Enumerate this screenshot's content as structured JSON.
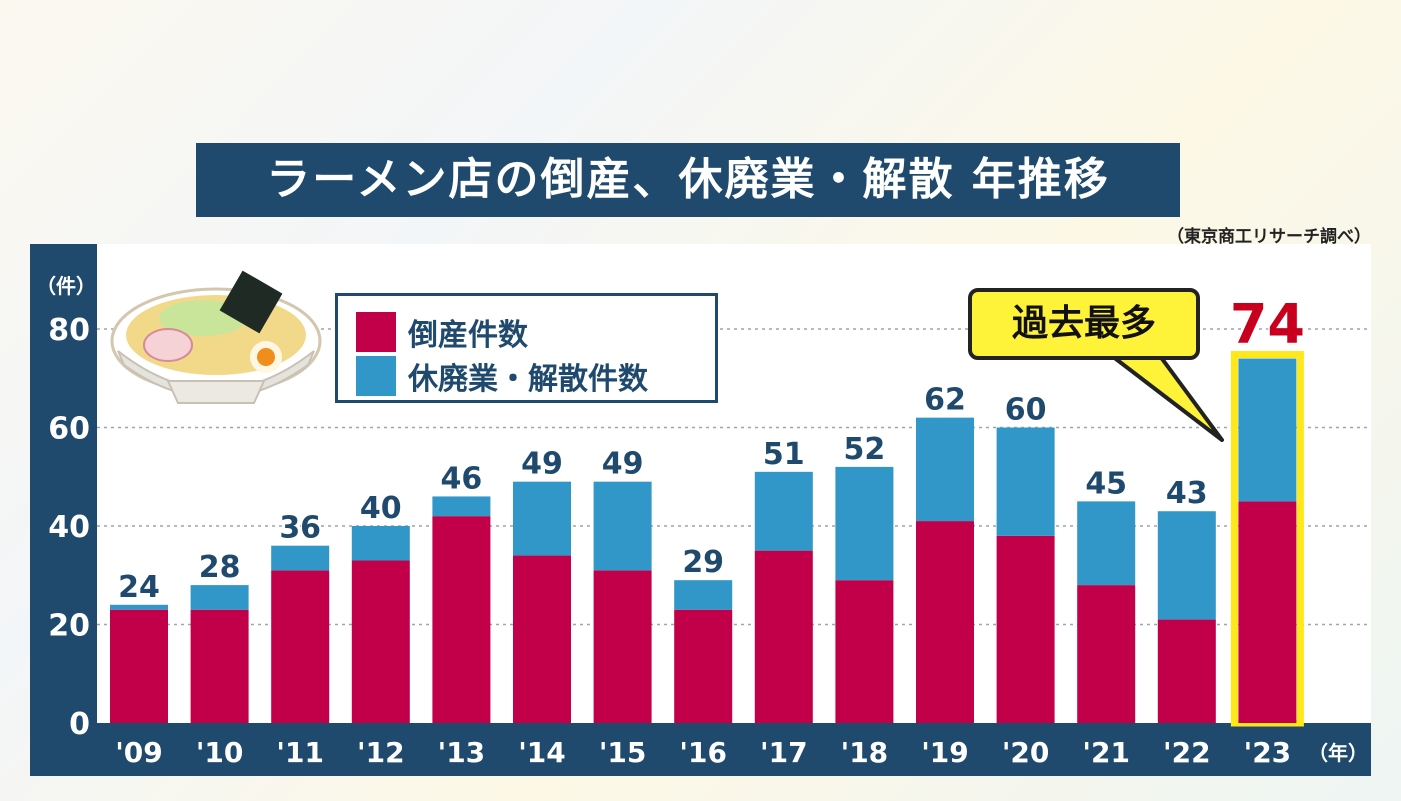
{
  "title": "ラーメン店の倒産、休廃業・解散 年推移",
  "source": "（東京商工リサーチ調べ）",
  "y_unit": "（件）",
  "x_unit": "（年）",
  "callout": "過去最多",
  "colors": {
    "bankruptcy": "#c2004a",
    "closure": "#3196c8",
    "panel": "#1f4a6e",
    "highlight": "#ffe81a",
    "total_highlight": "#c8001e"
  },
  "icons": {
    "bowl": "ramen-bowl-icon"
  },
  "chart_data": {
    "type": "bar",
    "stacked": true,
    "categories": [
      "'09",
      "'10",
      "'11",
      "'12",
      "'13",
      "'14",
      "'15",
      "'16",
      "'17",
      "'18",
      "'19",
      "'20",
      "'21",
      "'22",
      "'23"
    ],
    "series": [
      {
        "name": "倒産件数",
        "values": [
          23,
          23,
          31,
          33,
          42,
          34,
          31,
          23,
          35,
          29,
          41,
          38,
          28,
          21,
          45
        ]
      },
      {
        "name": "休廃業・解散件数",
        "values": [
          1,
          5,
          5,
          7,
          4,
          15,
          18,
          6,
          16,
          23,
          21,
          22,
          17,
          22,
          29
        ]
      }
    ],
    "totals": [
      24,
      28,
      36,
      40,
      46,
      49,
      49,
      29,
      51,
      52,
      62,
      60,
      45,
      43,
      74
    ],
    "ylim": [
      0,
      80
    ],
    "yticks": [
      0,
      20,
      40,
      60,
      80
    ],
    "grid": true,
    "highlight_category": "'23",
    "legend": "top-left"
  }
}
